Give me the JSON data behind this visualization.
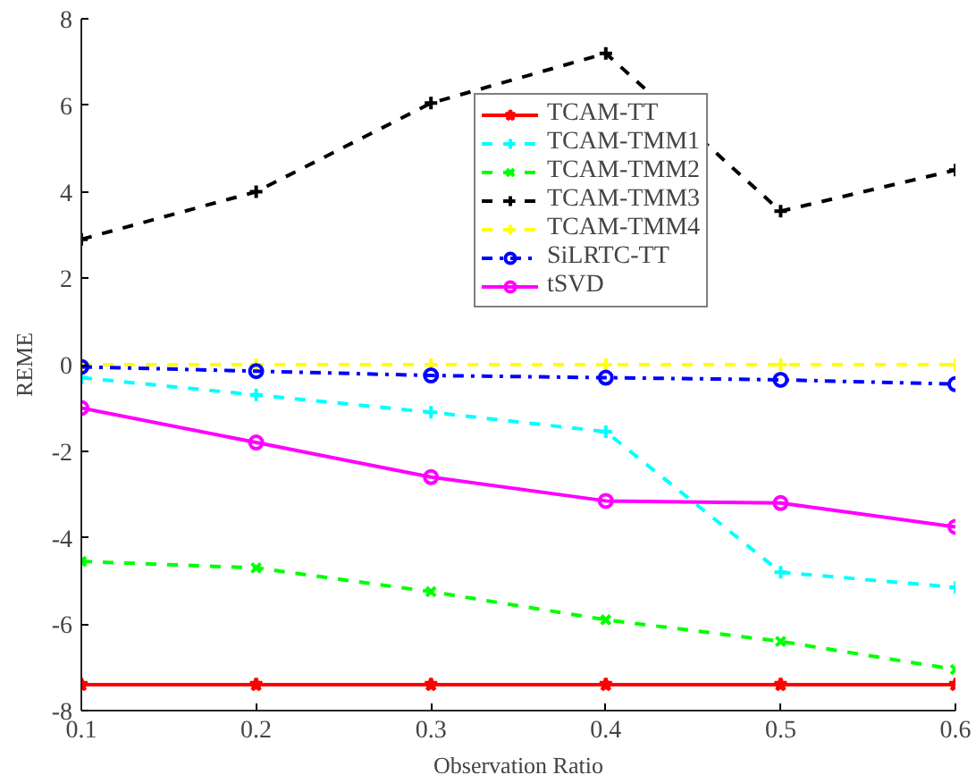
{
  "chart_data": {
    "type": "line",
    "xlabel": "Observation Ratio",
    "ylabel": "REME",
    "x": [
      0.1,
      0.2,
      0.3,
      0.4,
      0.5,
      0.6
    ],
    "xlim": [
      0.1,
      0.6
    ],
    "xticks": [
      0.1,
      0.2,
      0.3,
      0.4,
      0.5,
      0.6
    ],
    "ylim": [
      -8,
      8
    ],
    "yticks": [
      -8,
      -6,
      -4,
      -2,
      0,
      2,
      4,
      6,
      8
    ],
    "grid": false,
    "legend": "top",
    "series": [
      {
        "name": "TCAM-TT",
        "color": "#ff0000",
        "marker": "star",
        "line_style": "solid",
        "values": [
          -7.4,
          -7.4,
          -7.4,
          -7.4,
          -7.4,
          -7.4
        ]
      },
      {
        "name": "TCAM-TMM1",
        "color": "#00ffff",
        "marker": "cross",
        "line_style": "dashed",
        "values": [
          -0.3,
          -0.7,
          -1.1,
          -1.55,
          -4.8,
          -5.15
        ]
      },
      {
        "name": "TCAM-TMM2",
        "color": "#00ff00",
        "marker": "x",
        "line_style": "dashed",
        "values": [
          -4.55,
          -4.7,
          -5.25,
          -5.9,
          -6.4,
          -7.05
        ]
      },
      {
        "name": "TCAM-TMM3",
        "color": "#000000",
        "marker": "cross",
        "line_style": "dashed",
        "values": [
          2.9,
          4.0,
          6.05,
          7.2,
          3.55,
          4.5
        ]
      },
      {
        "name": "TCAM-TMM4",
        "color": "#ffff00",
        "marker": "cross",
        "line_style": "dashed",
        "values": [
          0.0,
          0.0,
          0.0,
          0.0,
          0.0,
          0.0
        ]
      },
      {
        "name": "SiLRTC-TT",
        "color": "#0000ff",
        "marker": "circle",
        "line_style": "dashdot",
        "values": [
          -0.05,
          -0.15,
          -0.25,
          -0.3,
          -0.35,
          -0.45
        ]
      },
      {
        "name": "tSVD",
        "color": "#ff00ff",
        "marker": "circle",
        "line_style": "solid",
        "values": [
          -1.0,
          -1.8,
          -2.6,
          -3.15,
          -3.2,
          -3.75
        ]
      }
    ]
  }
}
